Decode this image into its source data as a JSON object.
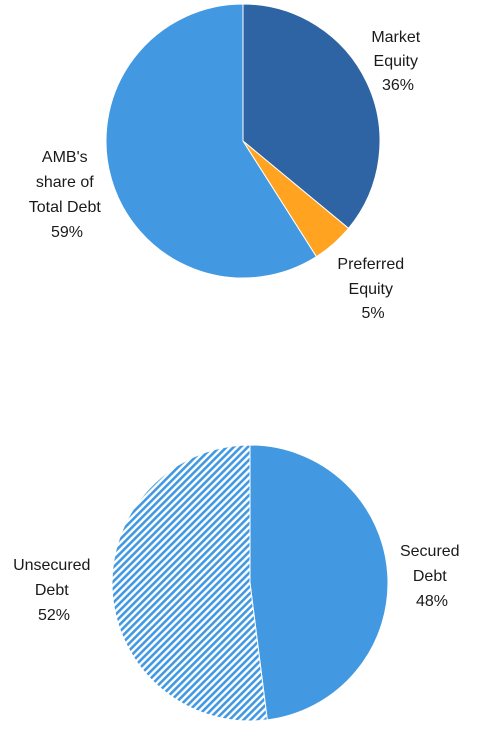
{
  "chart_data": [
    {
      "type": "pie",
      "start_angle_deg": 0,
      "direction": "clockwise",
      "slices": [
        {
          "label_lines": [
            "Market",
            "Equity",
            "36%"
          ],
          "value": 36,
          "color": "#2E63A4",
          "pattern": "solid"
        },
        {
          "label_lines": [
            "Preferred",
            "Equity",
            "5%"
          ],
          "value": 5,
          "color": "#FFA321",
          "pattern": "solid"
        },
        {
          "label_lines": [
            "AMB's",
            "share of",
            "Total Debt",
            "59%"
          ],
          "value": 59,
          "color": "#4299E1",
          "pattern": "solid"
        }
      ]
    },
    {
      "type": "pie",
      "start_angle_deg": 0,
      "direction": "clockwise",
      "slices": [
        {
          "label_lines": [
            "Secured",
            "Debt",
            "48%"
          ],
          "value": 48,
          "color": "#4299E1",
          "pattern": "solid"
        },
        {
          "label_lines": [
            "Unsecured",
            "Debt",
            "52%"
          ],
          "value": 52,
          "color": "#4299E1",
          "pattern": "diagonal-hatch"
        }
      ]
    }
  ]
}
